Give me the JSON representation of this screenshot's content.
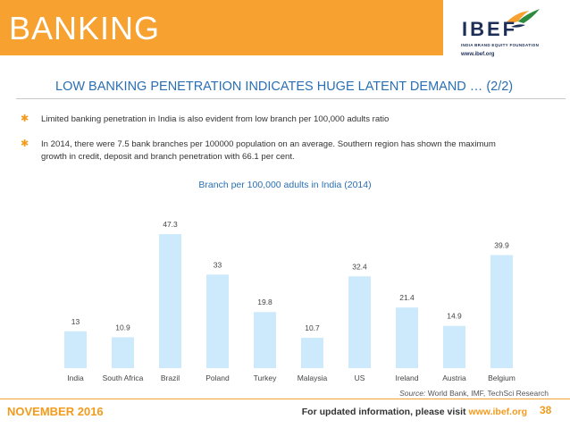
{
  "header": {
    "section_title": "BANKING",
    "logo_text": "IBEF",
    "logo_subtitle": "INDIA BRAND EQUITY FOUNDATION",
    "logo_url": "www.ibef.org"
  },
  "subtitle": "LOW BANKING PENETRATION INDICATES HUGE LATENT DEMAND … (2/2)",
  "bullets": [
    "Limited banking penetration in India is also evident from low branch per 100,000 adults ratio",
    "In 2014, there were 7.5 bank branches per 100000 population on an average. Southern region has shown the maximum",
    "growth in credit, deposit and branch penetration with 66.1 per cent."
  ],
  "chart_data": {
    "type": "bar",
    "title": "Branch per 100,000 adults in India (2014)",
    "categories": [
      "India",
      "South Africa",
      "Brazil",
      "Poland",
      "Turkey",
      "Malaysia",
      "US",
      "Ireland",
      "Austria",
      "Belgium"
    ],
    "values": [
      13,
      10.9,
      47.3,
      33,
      19.8,
      10.7,
      32.4,
      21.4,
      14.9,
      39.9
    ],
    "value_labels": [
      "13",
      "10.9",
      "47.3",
      "33",
      "19.8",
      "10.7",
      "32.4",
      "21.4",
      "14.9",
      "39.9"
    ],
    "xlabel": "",
    "ylabel": "",
    "ylim": [
      0,
      50
    ],
    "grid": false,
    "bar_color": "#cdeafc"
  },
  "source": {
    "label": "Source:",
    "text": "World Bank, IMF, TechSci Research"
  },
  "footer": {
    "date": "NOVEMBER 2016",
    "info_text": "For updated information, please visit",
    "url": "www.ibef.org",
    "page_number": "38"
  },
  "colors": {
    "accent": "#f7a131",
    "title_blue": "#2a6fb4",
    "bar_fill": "#cdeafc"
  }
}
